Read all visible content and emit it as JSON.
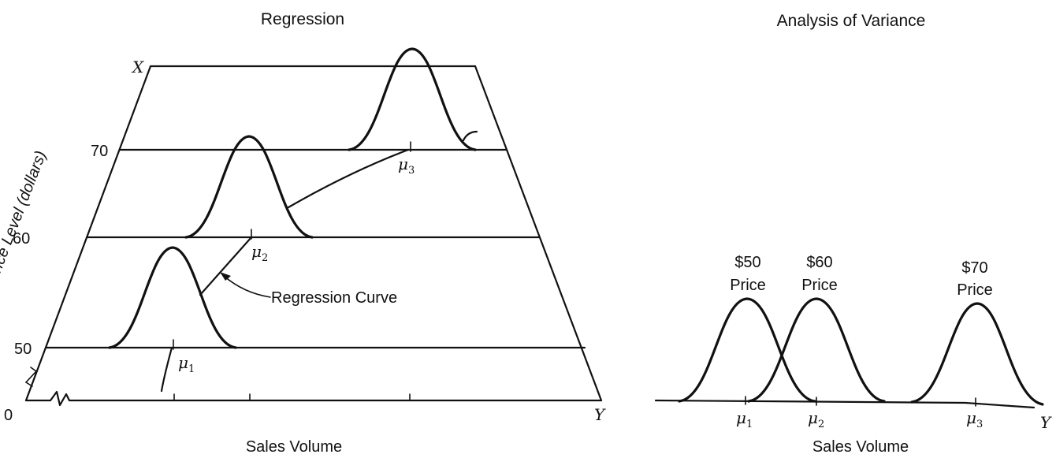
{
  "left_panel": {
    "title": "Regression",
    "axis_x_letter": "X",
    "axis_y_letter": "Y",
    "origin": "0",
    "ylabel": "Price Level (dollars)",
    "xlabel": "Sales Volume",
    "price_levels": [
      "50",
      "60",
      "70"
    ],
    "means": [
      {
        "mu": "μ",
        "sub": "1"
      },
      {
        "mu": "μ",
        "sub": "2"
      },
      {
        "mu": "μ",
        "sub": "3"
      }
    ],
    "annotation": "Regression Curve"
  },
  "right_panel": {
    "title": "Analysis of Variance",
    "axis_y_letter": "Y",
    "xlabel": "Sales Volume",
    "groups": [
      {
        "amount": "$50",
        "word": "Price",
        "mu": "μ",
        "sub": "1"
      },
      {
        "amount": "$60",
        "word": "Price",
        "mu": "μ",
        "sub": "2"
      },
      {
        "amount": "$70",
        "word": "Price",
        "mu": "μ",
        "sub": "3"
      }
    ]
  }
}
